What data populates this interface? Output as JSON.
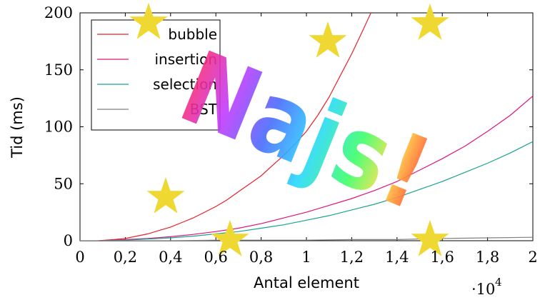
{
  "chart_data": {
    "type": "line",
    "xlabel": "Antal element",
    "ylabel": "Tid (ms)",
    "x_multiplier_label": "·10",
    "x_multiplier_exp": "4",
    "xlim": [
      0,
      20000
    ],
    "ylim": [
      0,
      200
    ],
    "x_ticks": [
      0,
      2000,
      4000,
      6000,
      8000,
      10000,
      12000,
      14000,
      16000,
      18000,
      20000
    ],
    "x_tick_labels": [
      "0",
      "0,2",
      "0,4",
      "0,6",
      "0,8",
      "1",
      "1,2",
      "1,4",
      "1,6",
      "1,8",
      "2"
    ],
    "y_ticks": [
      0,
      50,
      100,
      150,
      200
    ],
    "y_tick_labels": [
      "0",
      "50",
      "100",
      "150",
      "200"
    ],
    "grid": false,
    "legend_position": "top-left",
    "series": [
      {
        "name": "bubble",
        "color": "#e8202a",
        "x": [
          800,
          1500,
          2000,
          2500,
          3000,
          3500,
          4000,
          4500,
          5000,
          5500,
          6000,
          6500,
          7000,
          7500,
          8000,
          8500,
          9000,
          9500,
          10000,
          10500,
          11000,
          11500,
          12000,
          12500,
          12850
        ],
        "y": [
          0,
          1,
          2,
          4,
          6,
          9,
          12,
          16,
          20,
          25,
          30,
          36,
          43,
          50,
          57,
          66,
          75,
          85,
          96,
          110,
          126,
          145,
          164,
          185,
          200
        ]
      },
      {
        "name": "insertion",
        "color": "#e0147a",
        "x": [
          1000,
          2000,
          3000,
          4000,
          5000,
          6000,
          7000,
          8000,
          9000,
          10000,
          11000,
          12000,
          13000,
          14000,
          15000,
          16000,
          17000,
          18000,
          19000,
          20000
        ],
        "y": [
          0,
          1,
          2,
          3.5,
          5.5,
          8,
          11,
          15,
          20,
          25,
          31,
          37,
          44,
          52,
          62,
          72,
          83,
          96,
          110,
          127
        ]
      },
      {
        "name": "selection",
        "color": "#1aa393",
        "x": [
          1000,
          2000,
          3000,
          4000,
          5000,
          6000,
          7000,
          8000,
          9000,
          10000,
          11000,
          12000,
          13000,
          14000,
          15000,
          16000,
          17000,
          18000,
          19000,
          20000
        ],
        "y": [
          0,
          0.5,
          1.5,
          2.5,
          4,
          6,
          8,
          11,
          14,
          18,
          22,
          27,
          32,
          38,
          45,
          52,
          60,
          68,
          77,
          87
        ]
      },
      {
        "name": "BST",
        "color": "#808080",
        "x": [
          0,
          2000,
          4000,
          6000,
          8000,
          10000,
          12000,
          14000,
          16000,
          18000,
          20000
        ],
        "y": [
          0,
          0,
          0,
          0.5,
          0.5,
          0.5,
          1,
          1,
          2,
          2.5,
          3
        ]
      }
    ]
  },
  "decoration": {
    "text": "Najs!",
    "star_color": "#f0d832"
  }
}
